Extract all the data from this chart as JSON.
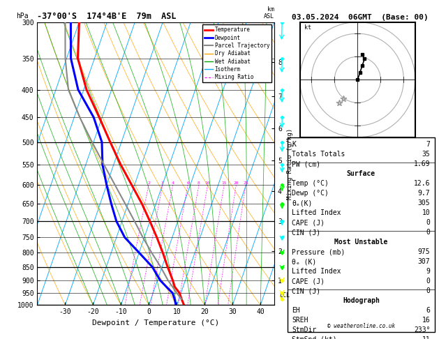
{
  "title_left": "-37°00'S  174°4B'E  79m  ASL",
  "title_right": "03.05.2024  06GMT  (Base: 00)",
  "xlabel": "Dewpoint / Temperature (°C)",
  "temp_line_color": "#ff0000",
  "dewp_line_color": "#0000ff",
  "parcel_line_color": "#888888",
  "dry_adiabat_color": "#ffa500",
  "wet_adiabat_color": "#00aa00",
  "isotherm_color": "#00aaff",
  "mixing_ratio_color": "#ff00ff",
  "pmin": 300,
  "pmax": 1000,
  "tmin": -40,
  "tmax": 45,
  "skew_factor": 35.0,
  "pressure_ticks": [
    300,
    350,
    400,
    450,
    500,
    550,
    600,
    650,
    700,
    750,
    800,
    850,
    900,
    950,
    1000
  ],
  "pressure_major": [
    300,
    500,
    700,
    850,
    1000
  ],
  "temp_ticks": [
    -30,
    -20,
    -10,
    0,
    10,
    20,
    30,
    40
  ],
  "temp_profile_p": [
    1000,
    975,
    950,
    925,
    900,
    850,
    800,
    750,
    700,
    650,
    600,
    550,
    500,
    450,
    400,
    350,
    300
  ],
  "temp_profile_t": [
    12.6,
    11.0,
    9.5,
    7.0,
    5.5,
    2.0,
    -1.5,
    -5.5,
    -10.0,
    -15.0,
    -21.0,
    -27.5,
    -34.0,
    -41.0,
    -49.0,
    -56.0,
    -60.0
  ],
  "dewp_profile_p": [
    1000,
    975,
    950,
    925,
    900,
    850,
    800,
    750,
    700,
    650,
    600,
    550,
    500,
    450,
    400,
    350,
    300
  ],
  "dewp_profile_t": [
    9.7,
    8.5,
    7.0,
    4.0,
    1.0,
    -3.5,
    -10.0,
    -17.0,
    -22.0,
    -26.0,
    -30.0,
    -34.0,
    -37.0,
    -43.0,
    -52.0,
    -58.5,
    -63.0
  ],
  "parcel_profile_p": [
    975,
    950,
    925,
    900,
    850,
    800,
    750,
    700,
    650,
    600,
    550,
    500,
    450,
    400,
    350,
    300
  ],
  "parcel_profile_t": [
    11.0,
    8.5,
    6.2,
    3.8,
    -0.5,
    -5.5,
    -10.5,
    -15.5,
    -21.0,
    -27.0,
    -33.5,
    -40.5,
    -48.0,
    -55.5,
    -60.5,
    -65.0
  ],
  "mixing_ratio_values": [
    2,
    3,
    4,
    6,
    8,
    10,
    15,
    20,
    25
  ],
  "km_labels": [
    8,
    7,
    6,
    5,
    4,
    3,
    2,
    1
  ],
  "km_pressures": [
    356,
    411,
    472,
    540,
    616,
    700,
    795,
    899
  ],
  "lcl_pressure": 960,
  "isotherm_temps": [
    -60,
    -50,
    -40,
    -30,
    -20,
    -10,
    0,
    10,
    20,
    30,
    40,
    50
  ],
  "dry_adiabat_t0s": [
    -40,
    -30,
    -20,
    -10,
    0,
    10,
    20,
    30,
    40,
    50,
    60,
    70,
    80,
    90,
    100,
    110,
    120,
    130,
    140,
    150,
    160
  ],
  "moist_adiabat_t0s": [
    -20,
    -15,
    -10,
    -5,
    0,
    5,
    10,
    15,
    20,
    25,
    30,
    35,
    40
  ],
  "wind_barb_pressures": [
    300,
    350,
    400,
    450,
    500,
    550,
    600,
    650,
    700,
    750,
    800,
    850,
    900,
    950,
    975
  ],
  "wind_barb_colors": [
    "#00ffff",
    "#00ffff",
    "#00ffff",
    "#00ffff",
    "#00ffff",
    "#00ffff",
    "#00ff00",
    "#00ff00",
    "#00ffff",
    "#00ffff",
    "#00ff00",
    "#00ff00",
    "#ffff00",
    "#ffff00",
    "#ffff00"
  ],
  "wind_angles_deg": [
    200,
    195,
    190,
    185,
    180,
    175,
    170,
    165,
    160,
    155,
    150,
    145,
    140,
    135,
    130
  ],
  "wind_speeds_kt": [
    25,
    20,
    18,
    15,
    14,
    12,
    10,
    9,
    8,
    7,
    6,
    5,
    4,
    4,
    3
  ],
  "right_panel": {
    "K": 7,
    "Totals_Totals": 35,
    "PW_cm": 1.69,
    "Surface_Temp": 12.6,
    "Surface_Dewp": 9.7,
    "Surface_theta_e": 305,
    "Surface_Lifted_Index": 10,
    "Surface_CAPE": 0,
    "Surface_CIN": 0,
    "MU_Pressure": 975,
    "MU_theta_e": 307,
    "MU_Lifted_Index": 9,
    "MU_CAPE": 0,
    "MU_CIN": 0,
    "EH": 6,
    "SREH": 16,
    "StmDir": 233,
    "StmSpd": 11
  }
}
